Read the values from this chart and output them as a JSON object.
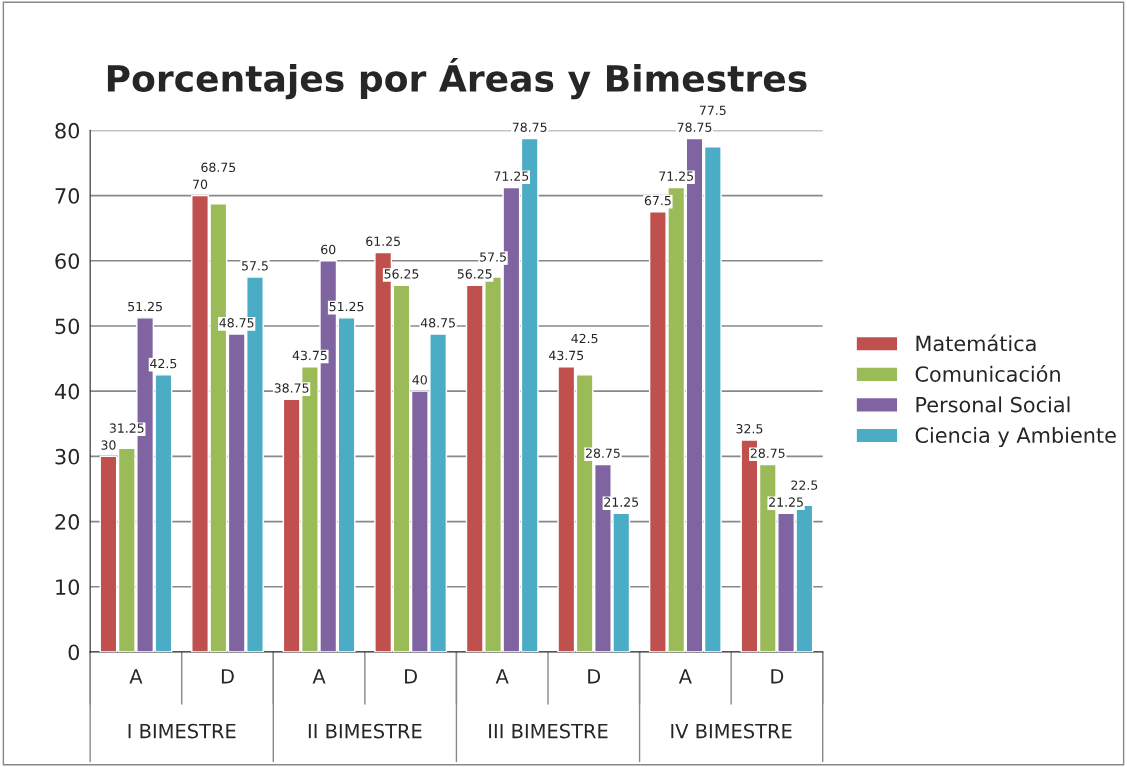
{
  "chart_data": {
    "type": "bar",
    "title": "Porcentajes por Áreas y Bimestres",
    "categories": [
      "A",
      "D",
      "A",
      "D",
      "A",
      "D",
      "A",
      "D"
    ],
    "series": [
      {
        "name": "Matemática",
        "color": "#c0504d",
        "values": [
          30,
          70,
          38.75,
          61.25,
          56.25,
          43.75,
          67.5,
          32.5
        ]
      },
      {
        "name": "Comunicación",
        "color": "#9bbb59",
        "values": [
          31.25,
          68.75,
          43.75,
          56.25,
          57.5,
          42.5,
          71.25,
          28.75
        ]
      },
      {
        "name": "Personal Social",
        "color": "#8064a2",
        "values": [
          51.25,
          48.75,
          60,
          40,
          71.25,
          28.75,
          78.75,
          21.25
        ]
      },
      {
        "name": "Ciencia y Ambiente",
        "color": "#4bacc6",
        "values": [
          42.5,
          57.5,
          51.25,
          48.75,
          78.75,
          21.25,
          77.5,
          22.5
        ]
      }
    ],
    "annotations": [
      "I BIMESTRE",
      "II BIMESTRE",
      "III BIMESTRE",
      "IV BIMESTRE"
    ],
    "ylim": [
      0,
      80
    ],
    "yticks": [
      0,
      10,
      20,
      30,
      40,
      50,
      60,
      70,
      80
    ],
    "grid": "y",
    "legend": "right",
    "data_labels": true
  }
}
